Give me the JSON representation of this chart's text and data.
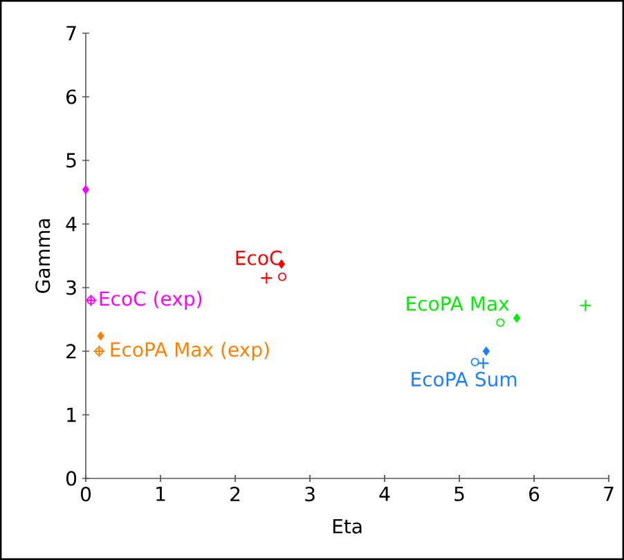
{
  "chart_data": {
    "type": "scatter",
    "xlabel": "Eta",
    "ylabel": "Gamma",
    "xlim": [
      0,
      7
    ],
    "ylim": [
      0,
      7
    ],
    "xticks": [
      0,
      1,
      2,
      3,
      4,
      5,
      6,
      7
    ],
    "yticks": [
      0,
      1,
      2,
      3,
      4,
      5,
      6,
      7
    ],
    "grid": false,
    "series": [
      {
        "color": "#ff00ff",
        "marker": "diamond",
        "x": [
          0
        ],
        "values": [
          4.54
        ]
      },
      {
        "color": "#ff00ff",
        "marker": "cross",
        "x": [
          0.07
        ],
        "values": [
          2.8
        ]
      },
      {
        "name": "EcoC (exp)",
        "color": "#ff00ff",
        "marker": "circle",
        "x": [
          0.07
        ],
        "values": [
          2.8
        ]
      },
      {
        "color": "#ff8000",
        "marker": "diamond",
        "x": [
          0.2
        ],
        "values": [
          2.24
        ]
      },
      {
        "color": "#ff8000",
        "marker": "cross",
        "x": [
          0.18
        ],
        "values": [
          2.0
        ]
      },
      {
        "name": "EcoPA Max (exp)",
        "color": "#ff8000",
        "marker": "circle",
        "x": [
          0.18
        ],
        "values": [
          2.0
        ]
      },
      {
        "name": "EcoC",
        "color": "#ff0000",
        "marker": "diamond",
        "x": [
          2.62
        ],
        "values": [
          3.37
        ]
      },
      {
        "color": "#ff0000",
        "marker": "cross",
        "x": [
          2.42
        ],
        "values": [
          3.15
        ]
      },
      {
        "color": "#ff0000",
        "marker": "circle",
        "x": [
          2.63
        ],
        "values": [
          3.17
        ]
      },
      {
        "name": "EcoPA Max",
        "color": "#00ee00",
        "marker": "diamond",
        "x": [
          5.77
        ],
        "values": [
          2.52
        ]
      },
      {
        "color": "#00ee00",
        "marker": "cross",
        "x": [
          6.69
        ],
        "values": [
          2.72
        ]
      },
      {
        "color": "#00ee00",
        "marker": "circle",
        "x": [
          5.55
        ],
        "values": [
          2.45
        ]
      },
      {
        "color": "#1a80ff",
        "marker": "diamond",
        "x": [
          5.36
        ],
        "values": [
          2.0
        ]
      },
      {
        "name": "EcoPA Sum",
        "color": "#1a80ff",
        "marker": "cross",
        "x": [
          5.32
        ],
        "values": [
          1.81
        ]
      },
      {
        "color": "#1a80ff",
        "marker": "circle",
        "x": [
          5.21
        ],
        "values": [
          1.83
        ]
      }
    ]
  }
}
